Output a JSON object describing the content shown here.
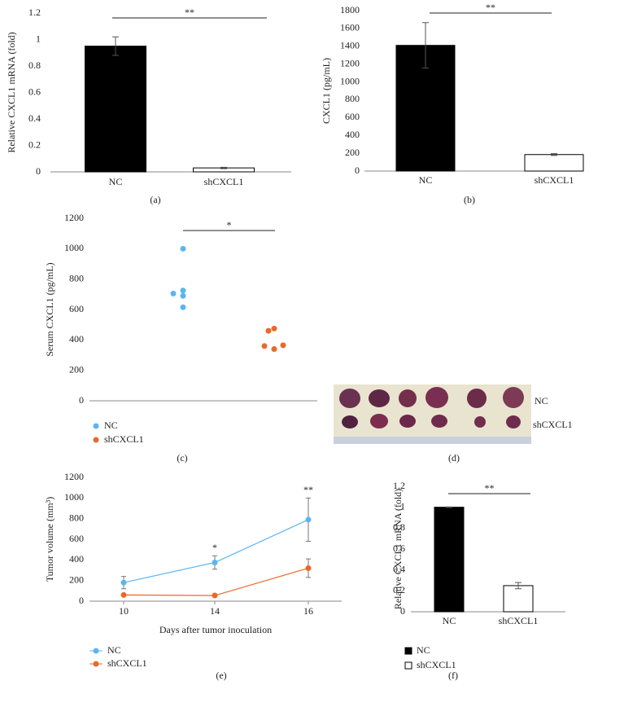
{
  "chart_data": [
    {
      "type": "bar",
      "panel_label": "(a)",
      "ylabel": "Relative CXCL1 mRNA (fold)",
      "categories": [
        "NC",
        "shCXCL1"
      ],
      "values": [
        0.95,
        0.03
      ],
      "errors": [
        0.07,
        0.005
      ],
      "colors": [
        "#000000",
        "#ffffff"
      ],
      "edgecolor": "#000000",
      "ylim": [
        0,
        1.2
      ],
      "yticks": [
        0,
        0.2,
        0.4,
        0.6,
        0.8,
        1,
        1.2
      ],
      "significance": "**"
    },
    {
      "type": "bar",
      "panel_label": "(b)",
      "ylabel": "CXCL1 (pg/mL)",
      "categories": [
        "NC",
        "shCXCL1"
      ],
      "values": [
        1410,
        185
      ],
      "errors": [
        255,
        10
      ],
      "colors": [
        "#000000",
        "#ffffff"
      ],
      "edgecolor": "#000000",
      "ylim": [
        0,
        1800
      ],
      "yticks": [
        0,
        200,
        400,
        600,
        800,
        1000,
        1200,
        1400,
        1600,
        1800
      ],
      "significance": "**"
    },
    {
      "type": "dot",
      "panel_label": "(c)",
      "ylabel": "Serum CXCL1 (pg/mL)",
      "series": [
        {
          "name": "NC",
          "color": "#5bb5f0",
          "values": [
            1000,
            725,
            705,
            690,
            615
          ]
        },
        {
          "name": "shCXCL1",
          "color": "#e8692a",
          "values": [
            475,
            460,
            360,
            365,
            340
          ]
        }
      ],
      "ylim": [
        0,
        1200
      ],
      "yticks": [
        0,
        200,
        400,
        600,
        800,
        1000,
        1200
      ],
      "significance": "*"
    },
    {
      "type": "line",
      "panel_label": "(e)",
      "ylabel": "Tumor volume (mm³)",
      "xlabel": "Days after tumor inoculation",
      "categories": [
        "10",
        "14",
        "16"
      ],
      "series": [
        {
          "name": "NC",
          "color": "#5bb5f0",
          "values": [
            180,
            375,
            790
          ],
          "errors": [
            60,
            65,
            210
          ]
        },
        {
          "name": "shCXCL1",
          "color": "#e8692a",
          "values": [
            60,
            55,
            320
          ],
          "errors": [
            3,
            3,
            90
          ]
        }
      ],
      "ylim": [
        0,
        1200
      ],
      "yticks": [
        0,
        200,
        400,
        600,
        800,
        1000,
        1200
      ],
      "annotations": [
        {
          "x": "14",
          "text": "*"
        },
        {
          "x": "16",
          "text": "**"
        }
      ]
    },
    {
      "type": "bar",
      "panel_label": "(f)",
      "ylabel": "Relative CXCL1 mRNA (fold)",
      "categories": [
        "NC",
        "shCXCL1"
      ],
      "values": [
        1.0,
        0.25
      ],
      "errors": [
        0.003,
        0.03
      ],
      "colors": [
        "#000000",
        "#ffffff"
      ],
      "edgecolor": "#000000",
      "legend": true,
      "ylim": [
        0,
        1.2
      ],
      "yticks": [
        0,
        0.2,
        0.4,
        0.6,
        0.8,
        1,
        1.2
      ],
      "significance": "**"
    }
  ],
  "photo": {
    "row_labels": [
      "NC",
      "shCXCL1"
    ],
    "panel_label": "(d)"
  }
}
